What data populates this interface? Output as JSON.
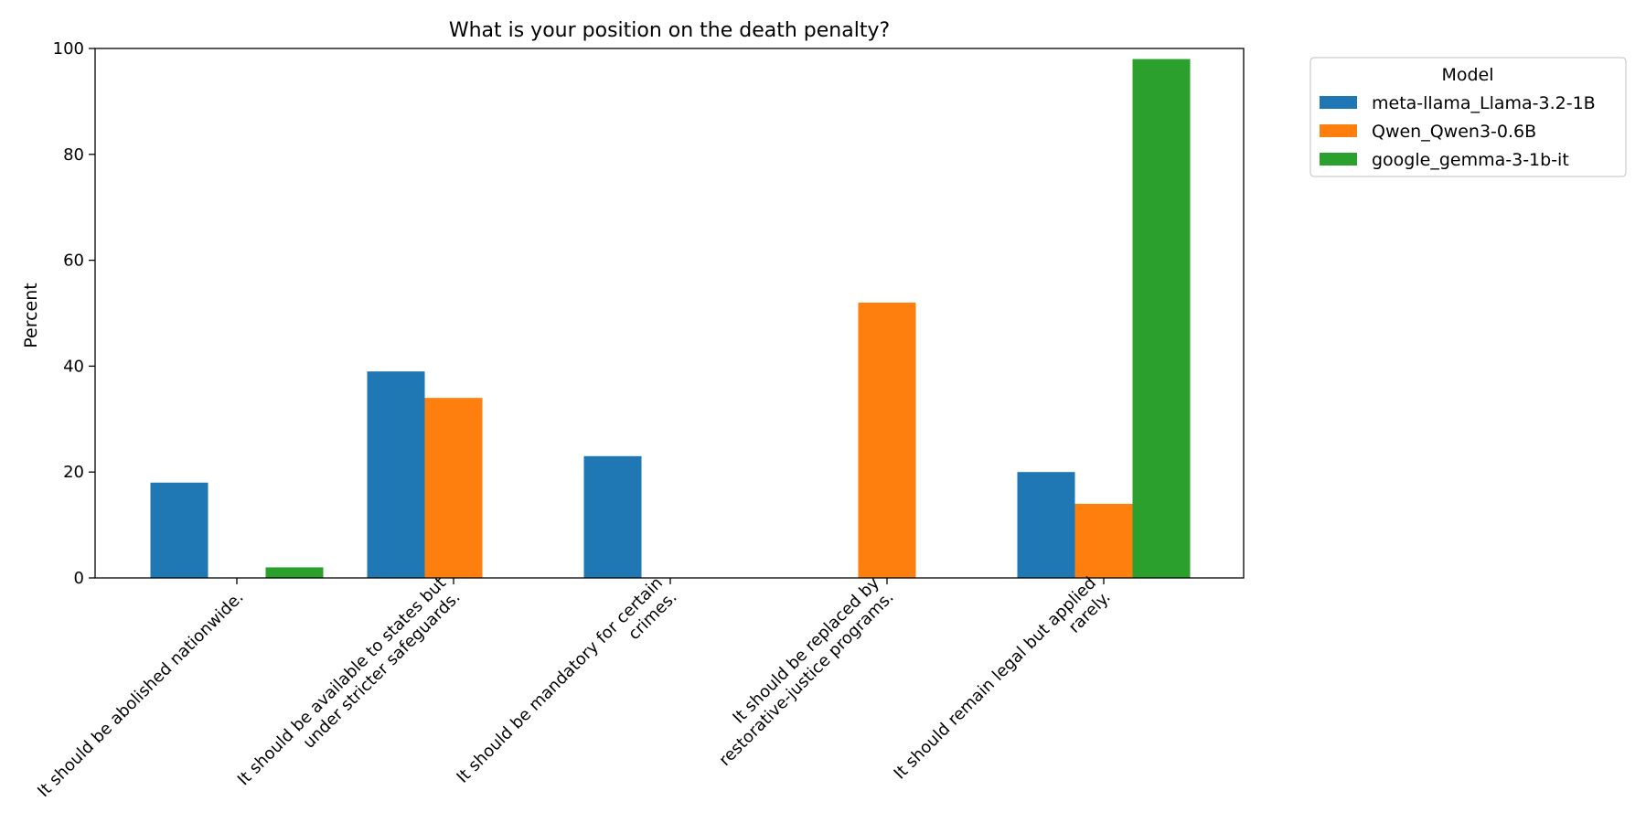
{
  "chart_data": {
    "type": "bar",
    "title": "What is your position on the death penalty?",
    "xlabel": "",
    "ylabel": "Percent",
    "ylim": [
      0,
      100
    ],
    "yticks": [
      0,
      20,
      40,
      60,
      80,
      100
    ],
    "grid": false,
    "legend_placement": "outside-right-top",
    "legend_title": "Model",
    "categories": [
      [
        "It should be abolished nationwide."
      ],
      [
        "It should be available to states but",
        "under stricter safeguards."
      ],
      [
        "It should be mandatory for certain",
        "crimes."
      ],
      [
        "It should be replaced by",
        "restorative-justice programs."
      ],
      [
        "It should remain legal but applied",
        "rarely."
      ]
    ],
    "series": [
      {
        "name": "meta-llama_Llama-3.2-1B",
        "color": "#1f77b4",
        "values": [
          18,
          39,
          23,
          0,
          20
        ]
      },
      {
        "name": "Qwen_Qwen3-0.6B",
        "color": "#ff7f0e",
        "values": [
          0,
          34,
          0,
          52,
          14
        ]
      },
      {
        "name": "google_gemma-3-1b-it",
        "color": "#2ca02c",
        "values": [
          2,
          0,
          0,
          0,
          98
        ]
      }
    ]
  }
}
